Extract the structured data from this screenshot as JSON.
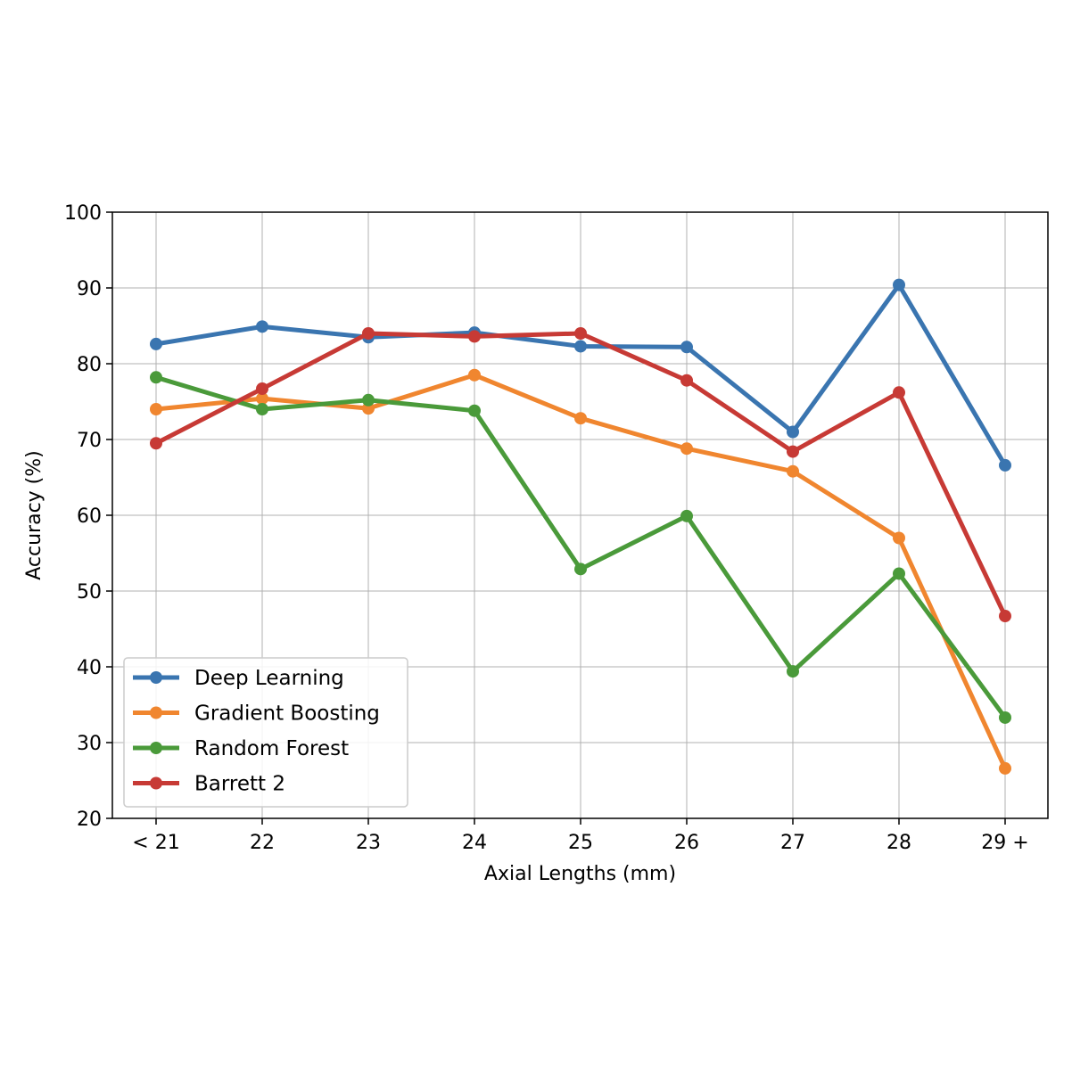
{
  "chart_data": {
    "type": "line",
    "title": "",
    "xlabel": "Axial Lengths (mm)",
    "ylabel": "Accuracy (%)",
    "categories": [
      "< 21",
      "22",
      "23",
      "24",
      "25",
      "26",
      "27",
      "28",
      "29 +"
    ],
    "ylim": [
      20,
      100
    ],
    "yticks": [
      20,
      30,
      40,
      50,
      60,
      70,
      80,
      90,
      100
    ],
    "grid": true,
    "legend_position": "lower-left",
    "series": [
      {
        "name": "Deep Learning",
        "color": "#3a75b0",
        "values": [
          82.6,
          84.9,
          83.5,
          84.1,
          82.3,
          82.2,
          71.0,
          90.4,
          66.6
        ]
      },
      {
        "name": "Gradient Boosting",
        "color": "#f0862f",
        "values": [
          74.0,
          75.4,
          74.1,
          78.5,
          72.8,
          68.8,
          65.8,
          57.0,
          26.6
        ]
      },
      {
        "name": "Random Forest",
        "color": "#4a9a3a",
        "values": [
          78.2,
          74.0,
          75.2,
          73.8,
          52.9,
          59.9,
          39.4,
          52.3,
          33.3
        ]
      },
      {
        "name": "Barrett 2",
        "color": "#c73a35",
        "values": [
          69.5,
          76.7,
          84.0,
          83.6,
          84.0,
          77.8,
          68.4,
          76.2,
          46.7
        ]
      }
    ]
  }
}
